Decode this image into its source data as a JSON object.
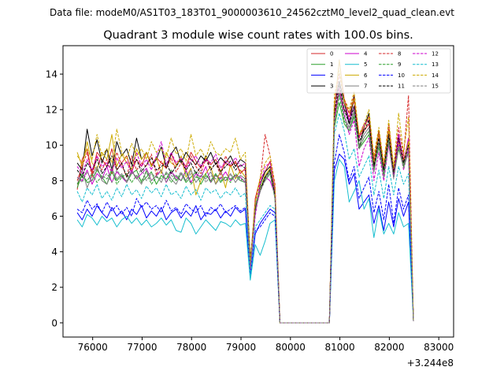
{
  "suptitle": "Data file: modeM0/AS1T03_183T01_9000003610_24562cztM0_level2_quad_clean.evt",
  "chart_data": {
    "type": "line",
    "title": "Quadrant 3 module wise count rates with 100.0s bins.",
    "xlabel": "",
    "ylabel": "",
    "x_offset_label": "+3.244e8",
    "x_range": [
      75400,
      83300
    ],
    "ylim": [
      -0.8,
      15.6
    ],
    "x_ticks": [
      76000,
      77000,
      78000,
      79000,
      80000,
      81000,
      82000,
      83000
    ],
    "x_tick_labels": [
      "76000",
      "77000",
      "78000",
      "79000",
      "80000",
      "81000",
      "82000",
      "83000"
    ],
    "y_ticks": [
      0,
      2,
      4,
      6,
      8,
      10,
      12,
      14
    ],
    "y_tick_labels": [
      "0",
      "2",
      "4",
      "6",
      "8",
      "10",
      "12",
      "14"
    ],
    "grid": false,
    "legend_position": "top-right",
    "legend_columns": 4,
    "x_start": 75688,
    "x_step": 100,
    "series": [
      {
        "name": "0",
        "color": "#d62728",
        "dash": false,
        "values": [
          7.5,
          9.2,
          9.8,
          8.4,
          9.6,
          9.2,
          8.8,
          9.8,
          8.6,
          9.0,
          9.4,
          8.5,
          9.2,
          8.8,
          9.6,
          8.9,
          9.3,
          9.0,
          8.7,
          9.5,
          8.9,
          9.2,
          8.8,
          9.6,
          9.1,
          8.7,
          9.3,
          8.9,
          9.2,
          8.5,
          9.0,
          8.8,
          9.1,
          8.4,
          8.7,
          3.2,
          7.0,
          8.1,
          8.5,
          9.1,
          7.6,
          0,
          0,
          0,
          0,
          0,
          0,
          0,
          0,
          0,
          0,
          0,
          11.6,
          13.2,
          12.0,
          11.6,
          12.5,
          10.5,
          10.8,
          11.2,
          9.0,
          10.6,
          8.7,
          10.9,
          8.6,
          10.4,
          9.2,
          10.1,
          0.1
        ]
      },
      {
        "name": "1",
        "color": "#2ca02c",
        "dash": false,
        "values": [
          7.6,
          8.4,
          7.9,
          8.0,
          8.6,
          8.2,
          7.8,
          8.5,
          8.0,
          8.3,
          7.9,
          8.4,
          8.6,
          7.9,
          8.2,
          8.5,
          7.8,
          8.3,
          8.1,
          8.6,
          8.0,
          8.4,
          7.9,
          8.2,
          8.5,
          7.8,
          8.3,
          8.0,
          8.4,
          7.9,
          8.2,
          8.1,
          8.3,
          8.0,
          7.9,
          3.4,
          6.6,
          7.6,
          8.0,
          8.4,
          7.0,
          0,
          0,
          0,
          0,
          0,
          0,
          0,
          0,
          0,
          0,
          0,
          11.0,
          12.4,
          11.2,
          10.8,
          11.6,
          9.8,
          10.2,
          10.6,
          8.6,
          9.9,
          8.2,
          10.1,
          8.2,
          9.8,
          8.8,
          9.6,
          0.1
        ]
      },
      {
        "name": "2",
        "color": "#0000ff",
        "dash": false,
        "values": [
          6.2,
          5.8,
          6.4,
          6.0,
          6.6,
          6.2,
          5.9,
          6.5,
          6.0,
          6.3,
          5.8,
          6.4,
          6.1,
          6.6,
          5.9,
          6.3,
          6.0,
          6.5,
          5.8,
          6.2,
          6.4,
          5.9,
          6.3,
          6.0,
          6.6,
          5.8,
          6.2,
          6.1,
          6.4,
          5.9,
          6.3,
          6.0,
          6.5,
          6.2,
          6.4,
          2.5,
          5.0,
          5.6,
          6.0,
          6.4,
          6.2,
          0,
          0,
          0,
          0,
          0,
          0,
          0,
          0,
          0,
          0,
          0,
          8.6,
          9.5,
          9.2,
          7.8,
          8.4,
          6.4,
          6.8,
          7.2,
          5.6,
          6.6,
          5.2,
          6.8,
          5.4,
          7.0,
          6.0,
          6.8,
          0.1
        ]
      },
      {
        "name": "3",
        "color": "#000000",
        "dash": false,
        "values": [
          9.0,
          8.6,
          10.9,
          9.4,
          10.3,
          9.0,
          9.8,
          8.6,
          10.2,
          9.4,
          9.8,
          8.9,
          10.4,
          9.2,
          9.6,
          8.8,
          9.2,
          9.9,
          8.7,
          9.5,
          9.9,
          9.0,
          9.6,
          9.2,
          8.9,
          9.4,
          9.1,
          9.6,
          8.9,
          9.3,
          9.0,
          9.4,
          8.8,
          9.2,
          9.0,
          3.6,
          6.2,
          7.8,
          8.5,
          8.8,
          7.2,
          0,
          0,
          0,
          0,
          0,
          0,
          0,
          0,
          0,
          0,
          0,
          12.2,
          13.6,
          12.4,
          11.2,
          12.8,
          9.8,
          11.0,
          11.8,
          8.8,
          10.8,
          8.6,
          10.4,
          8.2,
          10.6,
          9.0,
          10.2,
          0.1
        ]
      },
      {
        "name": "4",
        "color": "#cc00cc",
        "dash": false,
        "values": [
          8.2,
          8.0,
          8.6,
          7.8,
          8.4,
          8.1,
          8.8,
          7.9,
          8.5,
          8.2,
          7.9,
          8.6,
          8.1,
          8.4,
          8.7,
          8.0,
          8.3,
          8.6,
          7.9,
          8.5,
          8.2,
          8.0,
          8.6,
          7.9,
          8.4,
          8.2,
          8.8,
          7.9,
          8.3,
          8.1,
          8.5,
          8.0,
          8.3,
          8.2,
          7.9,
          3.0,
          6.4,
          7.4,
          8.2,
          8.0,
          7.2,
          0,
          0,
          0,
          0,
          0,
          0,
          0,
          0,
          0,
          0,
          0,
          11.8,
          14.8,
          12.6,
          11.4,
          12.2,
          10.4,
          11.2,
          11.4,
          9.0,
          10.2,
          8.5,
          10.6,
          8.5,
          10.6,
          9.0,
          10.4,
          0.1
        ]
      },
      {
        "name": "5",
        "color": "#17becf",
        "dash": false,
        "values": [
          5.8,
          5.4,
          6.1,
          5.9,
          5.5,
          6.0,
          5.7,
          5.9,
          5.4,
          5.8,
          6.0,
          5.6,
          5.9,
          5.5,
          5.8,
          5.4,
          5.6,
          5.9,
          5.5,
          5.8,
          5.2,
          5.1,
          5.9,
          5.6,
          5.0,
          5.4,
          5.8,
          5.5,
          5.2,
          5.7,
          5.6,
          5.4,
          5.8,
          5.5,
          5.6,
          2.4,
          4.4,
          3.8,
          4.6,
          5.6,
          5.8,
          0,
          0,
          0,
          0,
          0,
          0,
          0,
          0,
          0,
          0,
          0,
          8.0,
          9.2,
          8.8,
          6.8,
          7.4,
          8.0,
          6.4,
          7.0,
          4.8,
          6.4,
          5.0,
          5.6,
          5.0,
          6.2,
          5.4,
          5.6,
          0.1
        ]
      },
      {
        "name": "6",
        "color": "#ccaa00",
        "dash": false,
        "values": [
          9.6,
          8.8,
          10.2,
          9.0,
          8.6,
          9.6,
          9.2,
          10.6,
          8.8,
          9.5,
          9.0,
          8.6,
          9.8,
          9.2,
          9.6,
          8.8,
          9.3,
          8.4,
          9.6,
          9.0,
          8.8,
          9.4,
          8.2,
          8.7,
          7.2,
          8.0,
          8.4,
          8.8,
          7.8,
          8.6,
          7.6,
          8.9,
          8.1,
          8.6,
          8.2,
          3.4,
          6.5,
          7.6,
          8.3,
          8.7,
          7.4,
          0,
          0,
          0,
          0,
          0,
          0,
          0,
          0,
          0,
          0,
          0,
          12.0,
          14.8,
          12.4,
          11.8,
          12.6,
          10.6,
          11.0,
          11.6,
          9.0,
          10.7,
          8.8,
          10.8,
          8.5,
          10.2,
          9.0,
          10.2,
          0.1
        ]
      },
      {
        "name": "7",
        "color": "#7f7f7f",
        "dash": false,
        "values": [
          7.8,
          8.6,
          7.6,
          8.3,
          8.8,
          8.0,
          7.8,
          8.7,
          8.1,
          8.4,
          7.9,
          8.5,
          8.2,
          7.8,
          8.6,
          8.0,
          8.3,
          7.9,
          8.5,
          8.1,
          7.8,
          8.4,
          8.0,
          8.6,
          7.9,
          8.3,
          8.1,
          8.5,
          7.8,
          8.2,
          8.0,
          8.4,
          7.9,
          8.3,
          8.1,
          3.3,
          6.6,
          7.4,
          8.1,
          8.5,
          7.1,
          0,
          0,
          0,
          0,
          0,
          0,
          0,
          0,
          0,
          0,
          0,
          11.4,
          13.0,
          11.6,
          11.0,
          12.0,
          10.0,
          10.6,
          11.0,
          8.6,
          10.2,
          8.4,
          10.4,
          8.3,
          10.0,
          8.9,
          9.8,
          0.1
        ]
      },
      {
        "name": "8",
        "color": "#d62728",
        "dash": true,
        "values": [
          8.0,
          8.8,
          9.6,
          8.2,
          9.4,
          8.6,
          9.2,
          8.4,
          9.6,
          8.9,
          8.2,
          9.4,
          8.6,
          9.0,
          8.8,
          9.5,
          8.3,
          9.1,
          8.7,
          9.3,
          8.5,
          9.0,
          8.6,
          9.4,
          8.8,
          8.4,
          9.2,
          8.6,
          9.0,
          8.3,
          9.4,
          8.8,
          9.0,
          8.5,
          8.6,
          3.4,
          6.8,
          8.0,
          10.6,
          9.4,
          7.8,
          0,
          0,
          0,
          0,
          0,
          0,
          0,
          0,
          0,
          0,
          0,
          12.4,
          14.0,
          12.6,
          11.8,
          12.8,
          10.4,
          11.0,
          11.6,
          9.2,
          10.8,
          8.8,
          11.2,
          8.6,
          11.0,
          9.4,
          12.8,
          0.1
        ]
      },
      {
        "name": "9",
        "color": "#2ca02c",
        "dash": true,
        "values": [
          7.8,
          8.2,
          8.0,
          8.4,
          7.9,
          8.3,
          8.1,
          8.6,
          7.8,
          8.2,
          8.4,
          7.9,
          8.3,
          8.0,
          8.5,
          7.8,
          8.2,
          8.1,
          8.4,
          7.9,
          8.3,
          8.0,
          8.5,
          7.8,
          8.2,
          8.1,
          8.4,
          7.9,
          8.3,
          8.0,
          8.2,
          7.9,
          8.4,
          8.1,
          8.0,
          3.2,
          6.4,
          7.6,
          8.2,
          8.6,
          7.0,
          0,
          0,
          0,
          0,
          0,
          0,
          0,
          0,
          0,
          0,
          0,
          11.2,
          12.8,
          11.4,
          10.8,
          11.8,
          9.9,
          10.4,
          10.8,
          8.5,
          10.1,
          8.3,
          10.3,
          8.2,
          9.9,
          8.8,
          9.7,
          0.1
        ]
      },
      {
        "name": "10",
        "color": "#0000ff",
        "dash": true,
        "values": [
          6.4,
          6.2,
          6.9,
          6.4,
          6.7,
          6.2,
          6.8,
          6.3,
          6.6,
          6.1,
          6.5,
          6.0,
          7.0,
          6.5,
          6.8,
          6.4,
          6.6,
          6.2,
          6.9,
          6.3,
          6.5,
          6.1,
          6.7,
          6.4,
          6.2,
          6.6,
          6.0,
          6.5,
          6.3,
          6.7,
          6.2,
          6.4,
          6.6,
          6.3,
          6.5,
          2.8,
          5.2,
          5.4,
          5.8,
          6.2,
          6.0,
          0,
          0,
          0,
          0,
          0,
          0,
          0,
          0,
          0,
          0,
          0,
          9.0,
          10.6,
          9.6,
          8.0,
          8.8,
          7.0,
          7.6,
          8.2,
          6.2,
          7.4,
          5.8,
          7.8,
          5.6,
          7.6,
          6.4,
          7.2,
          0.1
        ]
      },
      {
        "name": "11",
        "color": "#000000",
        "dash": true,
        "values": [
          8.6,
          8.2,
          9.0,
          8.6,
          9.2,
          8.4,
          8.8,
          9.4,
          8.6,
          9.0,
          8.2,
          8.8,
          9.2,
          8.5,
          8.9,
          9.3,
          8.6,
          8.8,
          9.0,
          8.4,
          8.8,
          9.2,
          8.6,
          9.0,
          8.4,
          8.8,
          9.4,
          8.6,
          9.0,
          8.5,
          8.8,
          9.1,
          8.6,
          8.9,
          8.7,
          3.2,
          6.4,
          7.4,
          8.2,
          8.6,
          7.2,
          0,
          0,
          0,
          0,
          0,
          0,
          0,
          0,
          0,
          0,
          0,
          11.8,
          13.4,
          12.0,
          11.2,
          12.2,
          10.2,
          10.8,
          11.4,
          8.8,
          10.4,
          8.6,
          10.6,
          8.4,
          10.4,
          9.0,
          10.0,
          0.1
        ]
      },
      {
        "name": "12",
        "color": "#cc00cc",
        "dash": true,
        "values": [
          8.8,
          8.4,
          9.2,
          8.6,
          9.4,
          8.8,
          9.0,
          8.5,
          9.3,
          8.7,
          9.1,
          8.4,
          9.6,
          8.8,
          9.2,
          8.6,
          9.4,
          10.2,
          8.9,
          9.6,
          9.0,
          9.3,
          8.7,
          9.1,
          9.4,
          8.8,
          9.2,
          9.0,
          9.5,
          8.7,
          9.1,
          8.9,
          9.3,
          8.8,
          9.0,
          3.0,
          6.0,
          7.8,
          8.8,
          9.0,
          7.4,
          0,
          0,
          0,
          0,
          0,
          0,
          0,
          0,
          0,
          0,
          0,
          11.4,
          13.2,
          11.8,
          10.6,
          11.4,
          8.8,
          9.8,
          10.4,
          8.0,
          9.6,
          8.0,
          10.0,
          8.2,
          10.2,
          8.6,
          9.8,
          0.1
        ]
      },
      {
        "name": "13",
        "color": "#17becf",
        "dash": true,
        "values": [
          7.4,
          6.8,
          7.6,
          7.2,
          7.8,
          7.0,
          7.4,
          6.9,
          7.6,
          7.1,
          7.8,
          7.2,
          7.5,
          7.0,
          7.7,
          7.3,
          7.6,
          7.1,
          7.8,
          7.2,
          7.4,
          7.0,
          7.7,
          7.2,
          7.5,
          6.9,
          7.6,
          7.3,
          7.5,
          7.0,
          7.4,
          7.2,
          7.6,
          7.1,
          7.3,
          2.6,
          5.4,
          5.8,
          6.2,
          6.6,
          6.4,
          0,
          0,
          0,
          0,
          0,
          0,
          0,
          0,
          0,
          0,
          0,
          10.6,
          11.8,
          10.8,
          9.2,
          9.8,
          8.2,
          8.8,
          9.4,
          7.2,
          8.6,
          7.0,
          8.8,
          7.2,
          8.8,
          7.8,
          8.4,
          0.1
        ]
      },
      {
        "name": "14",
        "color": "#ccaa00",
        "dash": true,
        "values": [
          9.4,
          9.0,
          9.8,
          9.2,
          10.6,
          9.4,
          9.8,
          9.0,
          10.9,
          9.6,
          9.2,
          10.1,
          9.4,
          9.8,
          9.2,
          10.2,
          9.6,
          9.8,
          9.3,
          10.4,
          9.5,
          9.8,
          9.1,
          10.6,
          9.4,
          9.8,
          9.2,
          10.2,
          9.6,
          9.4,
          9.8,
          9.6,
          10.4,
          9.2,
          9.6,
          3.4,
          6.8,
          8.2,
          9.0,
          9.4,
          7.6,
          0,
          0,
          0,
          0,
          0,
          0,
          0,
          0,
          0,
          0,
          0,
          12.8,
          14.2,
          12.6,
          12.0,
          13.0,
          10.6,
          11.2,
          12.0,
          9.4,
          11.0,
          9.0,
          11.4,
          8.8,
          11.8,
          9.6,
          11.6,
          0.1
        ]
      },
      {
        "name": "15",
        "color": "#7f7f7f",
        "dash": true,
        "values": [
          8.2,
          7.9,
          8.5,
          8.0,
          8.7,
          8.1,
          8.4,
          7.9,
          8.6,
          8.2,
          8.0,
          8.5,
          8.1,
          8.7,
          8.0,
          8.4,
          8.2,
          8.6,
          7.9,
          8.3,
          8.1,
          8.5,
          8.0,
          8.4,
          8.2,
          8.6,
          7.9,
          8.3,
          8.1,
          8.5,
          8.0,
          8.3,
          8.2,
          8.0,
          8.1,
          3.1,
          6.3,
          7.4,
          8.0,
          8.4,
          7.0,
          0,
          0,
          0,
          0,
          0,
          0,
          0,
          0,
          0,
          0,
          0,
          11.2,
          13.0,
          11.6,
          10.8,
          11.8,
          9.8,
          10.4,
          10.8,
          8.5,
          10.0,
          8.2,
          10.2,
          8.1,
          9.9,
          8.7,
          9.6,
          0.1
        ]
      }
    ]
  }
}
